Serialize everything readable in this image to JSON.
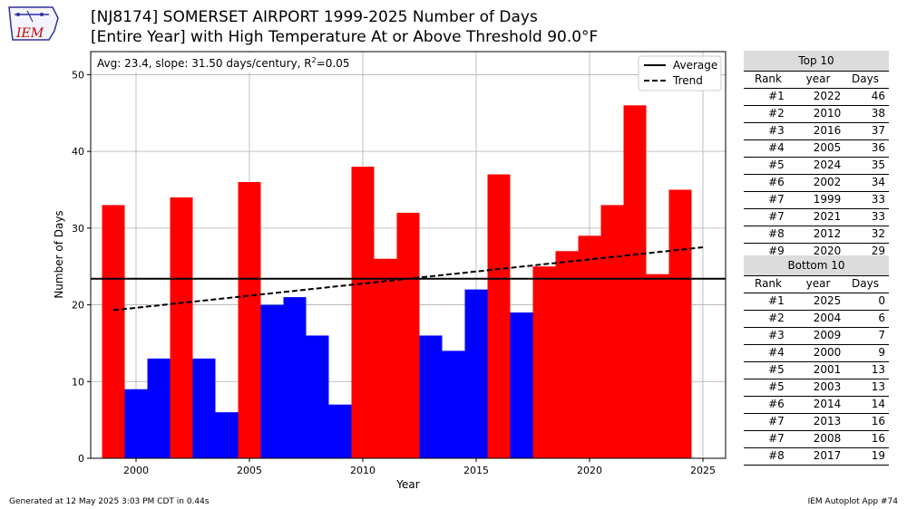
{
  "header": {
    "logo_text": "IEM",
    "title_line1": "[NJ8174] SOMERSET AIRPORT 1999-2025 Number of Days",
    "title_line2": "[Entire Year] with High Temperature At or Above Threshold 90.0°F"
  },
  "chart_data": {
    "type": "bar",
    "xlabel": "Year",
    "ylabel": "Number of Days",
    "xlim": [
      1998,
      2026
    ],
    "ylim": [
      0,
      53
    ],
    "xticks": [
      2000,
      2005,
      2010,
      2015,
      2020,
      2025
    ],
    "yticks": [
      0,
      10,
      20,
      30,
      40,
      50
    ],
    "grid": true,
    "x": [
      1999,
      2000,
      2001,
      2002,
      2003,
      2004,
      2005,
      2006,
      2007,
      2008,
      2009,
      2010,
      2011,
      2012,
      2013,
      2014,
      2015,
      2016,
      2017,
      2018,
      2019,
      2020,
      2021,
      2022,
      2023,
      2024,
      2025
    ],
    "values": [
      33,
      9,
      13,
      34,
      13,
      6,
      36,
      20,
      21,
      16,
      7,
      38,
      26,
      32,
      16,
      14,
      22,
      37,
      19,
      25,
      27,
      29,
      33,
      46,
      24,
      35,
      0
    ],
    "colors": {
      "above_average": "#ff0000",
      "below_average": "#0000ff"
    },
    "average": 23.4,
    "trend": {
      "slope_per_century": 31.5,
      "start": [
        1999,
        19.3
      ],
      "end": [
        2025,
        27.5
      ]
    },
    "annotation_prefix": "Avg: 23.4, slope: 31.50 days/century, R",
    "annotation_sup": "2",
    "annotation_suffix": "=0.05",
    "legend": {
      "position": "top-right",
      "entries": [
        {
          "label": "Average",
          "style": "solid"
        },
        {
          "label": "Trend",
          "style": "dashed"
        }
      ]
    }
  },
  "top10": {
    "title": "Top 10",
    "headers": [
      "Rank",
      "year",
      "Days"
    ],
    "rows": [
      [
        "#1",
        "2022",
        "46"
      ],
      [
        "#2",
        "2010",
        "38"
      ],
      [
        "#3",
        "2016",
        "37"
      ],
      [
        "#4",
        "2005",
        "36"
      ],
      [
        "#5",
        "2024",
        "35"
      ],
      [
        "#6",
        "2002",
        "34"
      ],
      [
        "#7",
        "1999",
        "33"
      ],
      [
        "#7",
        "2021",
        "33"
      ],
      [
        "#8",
        "2012",
        "32"
      ],
      [
        "#9",
        "2020",
        "29"
      ]
    ]
  },
  "bottom10": {
    "title": "Bottom 10",
    "headers": [
      "Rank",
      "year",
      "Days"
    ],
    "rows": [
      [
        "#1",
        "2025",
        "0"
      ],
      [
        "#2",
        "2004",
        "6"
      ],
      [
        "#3",
        "2009",
        "7"
      ],
      [
        "#4",
        "2000",
        "9"
      ],
      [
        "#5",
        "2001",
        "13"
      ],
      [
        "#5",
        "2003",
        "13"
      ],
      [
        "#6",
        "2014",
        "14"
      ],
      [
        "#7",
        "2013",
        "16"
      ],
      [
        "#7",
        "2008",
        "16"
      ],
      [
        "#8",
        "2017",
        "19"
      ]
    ]
  },
  "footer": {
    "left": "Generated at 12 May 2025 3:03 PM CDT in 0.44s",
    "right": "IEM Autoplot App #74"
  }
}
